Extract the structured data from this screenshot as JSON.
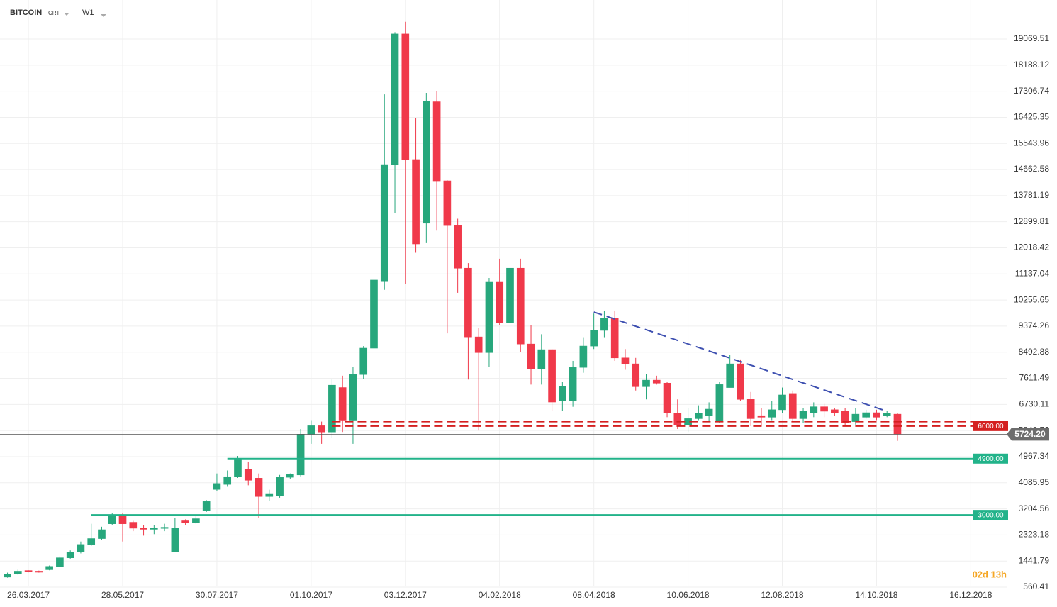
{
  "chart_data": {
    "type": "candlestick",
    "symbol": "BITCOIN",
    "feed": "CRT",
    "timeframe": "W1",
    "countdown": "02d 13h",
    "x": [
      "12.03.2017",
      "19.03.2017",
      "26.03.2017",
      "02.04.2017",
      "09.04.2017",
      "16.04.2017",
      "23.04.2017",
      "30.04.2017",
      "07.05.2017",
      "14.05.2017",
      "21.05.2017",
      "28.05.2017",
      "04.06.2017",
      "11.06.2017",
      "18.06.2017",
      "25.06.2017",
      "02.07.2017",
      "09.07.2017",
      "16.07.2017",
      "23.07.2017",
      "30.07.2017",
      "06.08.2017",
      "13.08.2017",
      "20.08.2017",
      "27.08.2017",
      "03.09.2017",
      "10.09.2017",
      "17.09.2017",
      "24.09.2017",
      "01.10.2017",
      "08.10.2017",
      "15.10.2017",
      "22.10.2017",
      "29.10.2017",
      "05.11.2017",
      "12.11.2017",
      "19.11.2017",
      "26.11.2017",
      "03.12.2017",
      "10.12.2017",
      "17.12.2017",
      "24.12.2017",
      "31.12.2017",
      "07.01.2018",
      "14.01.2018",
      "21.01.2018",
      "28.01.2018",
      "04.02.2018",
      "11.02.2018",
      "18.02.2018",
      "25.02.2018",
      "04.03.2018",
      "11.03.2018",
      "18.03.2018",
      "25.03.2018",
      "01.04.2018",
      "08.04.2018",
      "15.04.2018",
      "22.04.2018",
      "29.04.2018",
      "06.05.2018",
      "13.05.2018",
      "20.05.2018",
      "27.05.2018",
      "03.06.2018",
      "10.06.2018",
      "17.06.2018",
      "24.06.2018",
      "01.07.2018",
      "08.07.2018",
      "15.07.2018",
      "22.07.2018",
      "29.07.2018",
      "05.08.2018",
      "12.08.2018",
      "19.08.2018",
      "26.08.2018",
      "02.09.2018",
      "09.09.2018",
      "16.09.2018",
      "23.09.2018",
      "30.09.2018",
      "07.10.2018",
      "14.10.2018",
      "21.10.2018",
      "28.10.2018"
    ],
    "open": [
      900,
      1000,
      1120,
      1100,
      1150,
      1260,
      1550,
      1750,
      2000,
      2200,
      2700,
      3000,
      2750,
      2550,
      2520,
      2550,
      1750,
      2800,
      2740,
      3150,
      3860,
      4030,
      4290,
      4550,
      4240,
      3620,
      3640,
      4270,
      4350,
      5720,
      6010,
      5800,
      7300,
      6200,
      7740,
      8630,
      10900,
      14830,
      19240,
      15000,
      12850,
      16950,
      14280,
      12770,
      11330,
      9010,
      8480,
      10880,
      9490,
      11330,
      8770,
      7930,
      8580,
      6850,
      6850,
      7980,
      8700,
      9230,
      9650,
      8300,
      8100,
      7330,
      7550,
      7450,
      6430,
      6050,
      6250,
      6350,
      6150,
      7300,
      8100,
      6900,
      6350,
      6300,
      6550,
      7100,
      6250,
      6450,
      6650,
      6550,
      6500,
      6150,
      6300,
      6450,
      6350,
      6400
    ],
    "high": [
      1050,
      1150,
      1130,
      1120,
      1290,
      1600,
      1800,
      2100,
      2700,
      2600,
      3050,
      3050,
      2800,
      2650,
      2650,
      2700,
      2900,
      2850,
      2950,
      3500,
      4400,
      4500,
      4990,
      4800,
      4400,
      3850,
      4350,
      4400,
      5900,
      6200,
      6150,
      7600,
      7700,
      8000,
      8700,
      11400,
      17200,
      19300,
      19650,
      16400,
      17250,
      17300,
      14300,
      13000,
      11500,
      9300,
      11000,
      11650,
      11500,
      11650,
      9400,
      9100,
      8600,
      7500,
      8200,
      9000,
      9800,
      9900,
      9900,
      8600,
      8300,
      7750,
      7700,
      7500,
      6900,
      6600,
      6700,
      6800,
      7500,
      8400,
      8250,
      7150,
      6600,
      6850,
      7300,
      7200,
      6600,
      6800,
      6750,
      6600,
      6600,
      6600,
      6550,
      6550,
      6500,
      6450
    ],
    "low": [
      880,
      980,
      1060,
      1050,
      1130,
      1230,
      1520,
      1700,
      1950,
      2150,
      2650,
      2100,
      2450,
      2300,
      2350,
      2450,
      1750,
      2650,
      2700,
      3100,
      3800,
      3950,
      4250,
      4000,
      2900,
      3480,
      3580,
      4200,
      4300,
      5400,
      5400,
      5600,
      5800,
      5400,
      7600,
      8500,
      10600,
      13200,
      10800,
      11850,
      12200,
      12600,
      9130,
      10500,
      7570,
      5850,
      8000,
      9400,
      9300,
      8500,
      7400,
      7400,
      6500,
      6500,
      6650,
      7800,
      8600,
      9000,
      8200,
      7900,
      7200,
      6900,
      7400,
      6300,
      5900,
      5800,
      6200,
      6150,
      6100,
      7300,
      6850,
      6000,
      6000,
      6200,
      6450,
      6150,
      6100,
      6300,
      6300,
      6350,
      6000,
      6050,
      6250,
      6200,
      6300,
      5500
    ],
    "close": [
      1000,
      1100,
      1080,
      1080,
      1260,
      1550,
      1750,
      2000,
      2200,
      2500,
      3000,
      2700,
      2550,
      2520,
      2550,
      2580,
      2550,
      2740,
      2870,
      3450,
      4060,
      4290,
      4900,
      4170,
      3620,
      3720,
      4270,
      4360,
      5720,
      6010,
      5800,
      7380,
      6200,
      7740,
      8630,
      10930,
      14830,
      19240,
      15000,
      12150,
      16980,
      14280,
      12770,
      11330,
      9010,
      8480,
      10880,
      9490,
      11330,
      8770,
      7930,
      8580,
      6810,
      7330,
      7980,
      8700,
      9230,
      9650,
      8300,
      8100,
      7330,
      7550,
      7450,
      6450,
      6050,
      6250,
      6430,
      6570,
      7400,
      8100,
      6900,
      6250,
      6300,
      6550,
      7050,
      6250,
      6500,
      6650,
      6500,
      6450,
      6100,
      6400,
      6450,
      6300,
      6420,
      5724.2
    ],
    "up_color": "#27a77c",
    "down_color": "#f0394a",
    "xlim": [
      "07.03.2017",
      "09.01.2019"
    ],
    "xticks": [
      "26.03.2017",
      "28.05.2017",
      "30.07.2017",
      "01.10.2017",
      "03.12.2017",
      "04.02.2018",
      "08.04.2018",
      "10.06.2018",
      "12.08.2018",
      "14.10.2018",
      "16.12.2018"
    ],
    "ylim": [
      34,
      20387
    ],
    "yticks": [
      560.41,
      1441.79,
      2323.18,
      3204.56,
      4085.95,
      4967.34,
      5848.72,
      6730.11,
      7611.49,
      8492.88,
      9374.26,
      10255.65,
      11137.04,
      12018.42,
      12899.81,
      13781.19,
      14662.58,
      15543.96,
      16425.35,
      17306.74,
      18188.12,
      19069.51
    ],
    "grid": true,
    "last_price": {
      "value": 5724.2,
      "label": "5724.20",
      "color": "#6d6d6d"
    },
    "levels": [
      {
        "value": 3000,
        "label": "3000.00",
        "start": "07.05.2017",
        "color": "#22b38a",
        "style": "solid"
      },
      {
        "value": 4900,
        "label": "4900.00",
        "start": "06.08.2017",
        "color": "#22b38a",
        "style": "solid"
      },
      {
        "value": 6150,
        "start": "15.10.2017",
        "color": "#d42020",
        "style": "dashed"
      },
      {
        "value": 6000,
        "label": "6000.00",
        "start": "15.10.2017",
        "color": "#d42020",
        "style": "dashed"
      }
    ],
    "trendline": {
      "x": [
        "08.04.2018",
        "21.10.2018"
      ],
      "y": [
        9851,
        6498
      ],
      "color": "#3d4fb0"
    }
  }
}
